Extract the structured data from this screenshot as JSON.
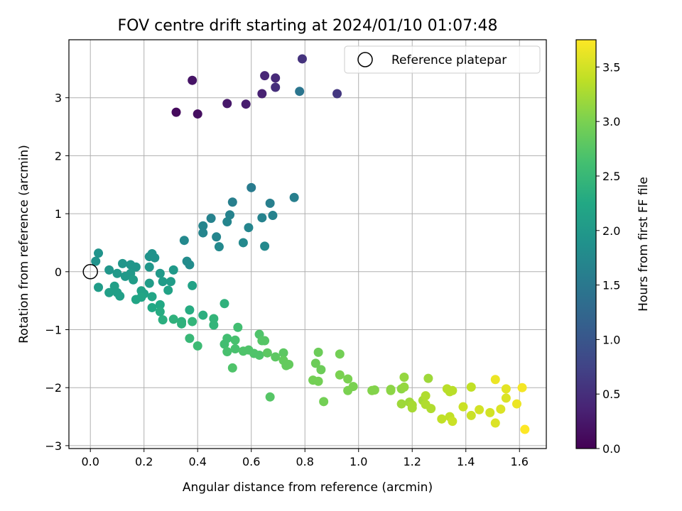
{
  "chart_data": {
    "type": "scatter",
    "title": "FOV centre drift starting at 2024/01/10 01:07:48",
    "xlabel": "Angular distance from reference (arcmin)",
    "ylabel": "Rotation from reference (arcmin)",
    "xlim": [
      -0.08,
      1.7
    ],
    "ylim": [
      -3.05,
      4.0
    ],
    "xticks": [
      "0.0",
      "0.2",
      "0.4",
      "0.6",
      "0.8",
      "1.0",
      "1.2",
      "1.4",
      "1.6"
    ],
    "xtick_values": [
      0.0,
      0.2,
      0.4,
      0.6,
      0.8,
      1.0,
      1.2,
      1.4,
      1.6
    ],
    "yticks": [
      "3",
      "2",
      "1",
      "0",
      "−1",
      "−2",
      "−3"
    ],
    "ytick_values": [
      3,
      2,
      1,
      0,
      -1,
      -2,
      -3
    ],
    "grid": true,
    "legend": {
      "label": "Reference platepar",
      "position": "top-right",
      "marker": "open-circle"
    },
    "reference_point": {
      "x": 0.0,
      "y": 0.0
    },
    "colorbar": {
      "label": "Hours from first FF file",
      "colormap": "viridis",
      "range": [
        0.0,
        3.75
      ],
      "ticks": [
        "0.0",
        "0.5",
        "1.0",
        "1.5",
        "2.0",
        "2.5",
        "3.0",
        "3.5"
      ],
      "tick_values": [
        0.0,
        0.5,
        1.0,
        1.5,
        2.0,
        2.5,
        3.0,
        3.5
      ]
    },
    "points": [
      {
        "x": 0.32,
        "y": 2.75,
        "h": 0.1
      },
      {
        "x": 0.4,
        "y": 2.72,
        "h": 0.15
      },
      {
        "x": 0.38,
        "y": 3.3,
        "h": 0.2
      },
      {
        "x": 0.51,
        "y": 2.9,
        "h": 0.25
      },
      {
        "x": 0.58,
        "y": 2.89,
        "h": 0.3
      },
      {
        "x": 0.64,
        "y": 3.07,
        "h": 0.35
      },
      {
        "x": 0.65,
        "y": 3.38,
        "h": 0.4
      },
      {
        "x": 0.69,
        "y": 3.34,
        "h": 0.45
      },
      {
        "x": 0.69,
        "y": 3.18,
        "h": 0.5
      },
      {
        "x": 0.79,
        "y": 3.67,
        "h": 0.55
      },
      {
        "x": 0.92,
        "y": 3.07,
        "h": 0.6
      },
      {
        "x": 0.78,
        "y": 3.11,
        "h": 1.45
      },
      {
        "x": 0.6,
        "y": 1.45,
        "h": 1.55
      },
      {
        "x": 0.76,
        "y": 1.28,
        "h": 1.6
      },
      {
        "x": 0.53,
        "y": 1.2,
        "h": 1.6
      },
      {
        "x": 0.67,
        "y": 1.18,
        "h": 1.6
      },
      {
        "x": 0.52,
        "y": 0.98,
        "h": 1.65
      },
      {
        "x": 0.68,
        "y": 0.97,
        "h": 1.65
      },
      {
        "x": 0.45,
        "y": 0.92,
        "h": 1.65
      },
      {
        "x": 0.64,
        "y": 0.93,
        "h": 1.65
      },
      {
        "x": 0.51,
        "y": 0.86,
        "h": 1.7
      },
      {
        "x": 0.42,
        "y": 0.79,
        "h": 1.7
      },
      {
        "x": 0.59,
        "y": 0.76,
        "h": 1.7
      },
      {
        "x": 0.42,
        "y": 0.67,
        "h": 1.7
      },
      {
        "x": 0.47,
        "y": 0.6,
        "h": 1.7
      },
      {
        "x": 0.35,
        "y": 0.54,
        "h": 1.75
      },
      {
        "x": 0.57,
        "y": 0.5,
        "h": 1.75
      },
      {
        "x": 0.65,
        "y": 0.44,
        "h": 1.75
      },
      {
        "x": 0.48,
        "y": 0.43,
        "h": 1.75
      },
      {
        "x": 0.36,
        "y": 0.18,
        "h": 1.8
      },
      {
        "x": 0.37,
        "y": 0.12,
        "h": 1.8
      },
      {
        "x": 0.03,
        "y": 0.32,
        "h": 1.9
      },
      {
        "x": 0.02,
        "y": 0.18,
        "h": 1.9
      },
      {
        "x": 0.12,
        "y": 0.14,
        "h": 1.95
      },
      {
        "x": 0.15,
        "y": 0.12,
        "h": 1.95
      },
      {
        "x": 0.17,
        "y": 0.08,
        "h": 1.95
      },
      {
        "x": 0.22,
        "y": 0.26,
        "h": 1.9
      },
      {
        "x": 0.23,
        "y": 0.31,
        "h": 1.9
      },
      {
        "x": 0.24,
        "y": 0.24,
        "h": 1.9
      },
      {
        "x": 0.22,
        "y": 0.08,
        "h": 1.95
      },
      {
        "x": 0.07,
        "y": 0.03,
        "h": 1.95
      },
      {
        "x": 0.1,
        "y": -0.03,
        "h": 2.0
      },
      {
        "x": 0.13,
        "y": -0.08,
        "h": 2.0
      },
      {
        "x": 0.15,
        "y": -0.03,
        "h": 2.0
      },
      {
        "x": 0.26,
        "y": -0.03,
        "h": 2.0
      },
      {
        "x": 0.31,
        "y": 0.03,
        "h": 2.0
      },
      {
        "x": 0.16,
        "y": -0.14,
        "h": 2.05
      },
      {
        "x": 0.27,
        "y": -0.17,
        "h": 2.05
      },
      {
        "x": 0.3,
        "y": -0.17,
        "h": 2.05
      },
      {
        "x": 0.03,
        "y": -0.27,
        "h": 2.05
      },
      {
        "x": 0.22,
        "y": -0.2,
        "h": 2.05
      },
      {
        "x": 0.09,
        "y": -0.25,
        "h": 2.1
      },
      {
        "x": 0.07,
        "y": -0.36,
        "h": 2.1
      },
      {
        "x": 0.1,
        "y": -0.36,
        "h": 2.1
      },
      {
        "x": 0.11,
        "y": -0.42,
        "h": 2.1
      },
      {
        "x": 0.19,
        "y": -0.33,
        "h": 2.15
      },
      {
        "x": 0.2,
        "y": -0.38,
        "h": 2.15
      },
      {
        "x": 0.29,
        "y": -0.32,
        "h": 2.15
      },
      {
        "x": 0.38,
        "y": -0.24,
        "h": 2.15
      },
      {
        "x": 0.17,
        "y": -0.48,
        "h": 2.2
      },
      {
        "x": 0.19,
        "y": -0.44,
        "h": 2.2
      },
      {
        "x": 0.23,
        "y": -0.43,
        "h": 2.2
      },
      {
        "x": 0.23,
        "y": -0.62,
        "h": 2.25
      },
      {
        "x": 0.26,
        "y": -0.57,
        "h": 2.25
      },
      {
        "x": 0.26,
        "y": -0.69,
        "h": 2.3
      },
      {
        "x": 0.37,
        "y": -0.66,
        "h": 2.3
      },
      {
        "x": 0.42,
        "y": -0.75,
        "h": 2.35
      },
      {
        "x": 0.27,
        "y": -0.83,
        "h": 2.35
      },
      {
        "x": 0.31,
        "y": -0.82,
        "h": 2.4
      },
      {
        "x": 0.34,
        "y": -0.86,
        "h": 2.4
      },
      {
        "x": 0.34,
        "y": -0.9,
        "h": 2.4
      },
      {
        "x": 0.38,
        "y": -0.86,
        "h": 2.45
      },
      {
        "x": 0.46,
        "y": -0.81,
        "h": 2.45
      },
      {
        "x": 0.46,
        "y": -0.92,
        "h": 2.45
      },
      {
        "x": 0.5,
        "y": -0.55,
        "h": 2.4
      },
      {
        "x": 0.37,
        "y": -1.15,
        "h": 2.5
      },
      {
        "x": 0.4,
        "y": -1.28,
        "h": 2.55
      },
      {
        "x": 0.5,
        "y": -1.25,
        "h": 2.6
      },
      {
        "x": 0.51,
        "y": -1.15,
        "h": 2.6
      },
      {
        "x": 0.55,
        "y": -0.96,
        "h": 2.6
      },
      {
        "x": 0.54,
        "y": -1.18,
        "h": 2.65
      },
      {
        "x": 0.54,
        "y": -1.33,
        "h": 2.65
      },
      {
        "x": 0.51,
        "y": -1.38,
        "h": 2.65
      },
      {
        "x": 0.57,
        "y": -1.37,
        "h": 2.7
      },
      {
        "x": 0.59,
        "y": -1.35,
        "h": 2.7
      },
      {
        "x": 0.61,
        "y": -1.41,
        "h": 2.7
      },
      {
        "x": 0.63,
        "y": -1.44,
        "h": 2.7
      },
      {
        "x": 0.63,
        "y": -1.08,
        "h": 2.7
      },
      {
        "x": 0.64,
        "y": -1.19,
        "h": 2.75
      },
      {
        "x": 0.65,
        "y": -1.19,
        "h": 2.75
      },
      {
        "x": 0.66,
        "y": -1.4,
        "h": 2.8
      },
      {
        "x": 0.69,
        "y": -1.47,
        "h": 2.8
      },
      {
        "x": 0.72,
        "y": -1.4,
        "h": 2.8
      },
      {
        "x": 0.72,
        "y": -1.53,
        "h": 2.85
      },
      {
        "x": 0.73,
        "y": -1.62,
        "h": 2.85
      },
      {
        "x": 0.74,
        "y": -1.6,
        "h": 2.85
      },
      {
        "x": 0.53,
        "y": -1.66,
        "h": 2.7
      },
      {
        "x": 0.67,
        "y": -2.16,
        "h": 2.75
      },
      {
        "x": 0.85,
        "y": -1.39,
        "h": 2.9
      },
      {
        "x": 0.84,
        "y": -1.58,
        "h": 2.9
      },
      {
        "x": 0.86,
        "y": -1.69,
        "h": 2.9
      },
      {
        "x": 0.83,
        "y": -1.87,
        "h": 2.95
      },
      {
        "x": 0.85,
        "y": -1.89,
        "h": 2.95
      },
      {
        "x": 0.87,
        "y": -2.24,
        "h": 2.95
      },
      {
        "x": 0.93,
        "y": -1.42,
        "h": 2.95
      },
      {
        "x": 0.93,
        "y": -1.78,
        "h": 3.0
      },
      {
        "x": 0.96,
        "y": -1.85,
        "h": 3.0
      },
      {
        "x": 0.98,
        "y": -1.98,
        "h": 3.0
      },
      {
        "x": 0.96,
        "y": -2.05,
        "h": 3.0
      },
      {
        "x": 1.05,
        "y": -2.05,
        "h": 3.05
      },
      {
        "x": 1.06,
        "y": -2.04,
        "h": 3.05
      },
      {
        "x": 1.12,
        "y": -2.03,
        "h": 3.1
      },
      {
        "x": 1.12,
        "y": -2.05,
        "h": 3.1
      },
      {
        "x": 1.16,
        "y": -2.02,
        "h": 3.1
      },
      {
        "x": 1.17,
        "y": -1.99,
        "h": 3.15
      },
      {
        "x": 1.17,
        "y": -1.82,
        "h": 3.15
      },
      {
        "x": 1.26,
        "y": -1.84,
        "h": 3.2
      },
      {
        "x": 1.16,
        "y": -2.28,
        "h": 3.2
      },
      {
        "x": 1.19,
        "y": -2.25,
        "h": 3.2
      },
      {
        "x": 1.2,
        "y": -2.35,
        "h": 3.25
      },
      {
        "x": 1.2,
        "y": -2.3,
        "h": 3.25
      },
      {
        "x": 1.24,
        "y": -2.22,
        "h": 3.25
      },
      {
        "x": 1.25,
        "y": -2.14,
        "h": 3.3
      },
      {
        "x": 1.25,
        "y": -2.29,
        "h": 3.3
      },
      {
        "x": 1.27,
        "y": -2.36,
        "h": 3.3
      },
      {
        "x": 1.33,
        "y": -2.02,
        "h": 3.35
      },
      {
        "x": 1.34,
        "y": -2.07,
        "h": 3.35
      },
      {
        "x": 1.35,
        "y": -2.05,
        "h": 3.35
      },
      {
        "x": 1.31,
        "y": -2.54,
        "h": 3.4
      },
      {
        "x": 1.34,
        "y": -2.5,
        "h": 3.4
      },
      {
        "x": 1.35,
        "y": -2.58,
        "h": 3.45
      },
      {
        "x": 1.39,
        "y": -2.33,
        "h": 3.45
      },
      {
        "x": 1.42,
        "y": -2.48,
        "h": 3.45
      },
      {
        "x": 1.45,
        "y": -2.38,
        "h": 3.5
      },
      {
        "x": 1.42,
        "y": -1.99,
        "h": 3.4
      },
      {
        "x": 1.49,
        "y": -2.43,
        "h": 3.5
      },
      {
        "x": 1.51,
        "y": -2.61,
        "h": 3.55
      },
      {
        "x": 1.53,
        "y": -2.37,
        "h": 3.55
      },
      {
        "x": 1.55,
        "y": -2.18,
        "h": 3.55
      },
      {
        "x": 1.55,
        "y": -2.02,
        "h": 3.6
      },
      {
        "x": 1.51,
        "y": -1.86,
        "h": 3.65
      },
      {
        "x": 1.59,
        "y": -2.28,
        "h": 3.65
      },
      {
        "x": 1.61,
        "y": -2.0,
        "h": 3.7
      },
      {
        "x": 1.62,
        "y": -2.72,
        "h": 3.75
      }
    ]
  }
}
